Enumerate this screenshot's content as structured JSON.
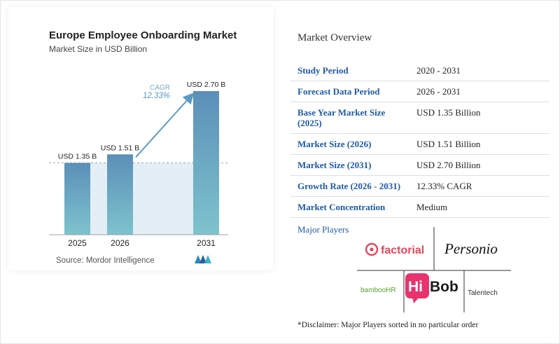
{
  "chart": {
    "source": "Source: Mordor Intelligence",
    "cagr_label": "CAGR",
    "cagr_value": "12.33%",
    "colors": {
      "bar_top": "#5b8fb8",
      "bar_bottom": "#7ec3cd",
      "band": "#e3eef6",
      "cagr": "#5a9bc4"
    }
  },
  "chart_data": {
    "type": "bar",
    "title": "Europe Employee Onboarding Market",
    "subtitle": "Market Size in USD Billion",
    "categories": [
      "2025",
      "2026",
      "2031"
    ],
    "values": [
      1.35,
      1.51,
      2.7
    ],
    "data_labels": [
      "USD 1.35 B",
      "USD 1.51 B",
      "USD 2.70 B"
    ],
    "ylim": [
      0,
      2.7
    ],
    "grid": false,
    "legend": "none"
  },
  "overview": {
    "title": "Market Overview",
    "rows": [
      {
        "key": "Study Period",
        "value": "2020 - 2031"
      },
      {
        "key": "Forecast Data Period",
        "value": "2026 - 2031"
      },
      {
        "key": "Base Year Market Size (2025)",
        "value": "USD 1.35 Billion"
      },
      {
        "key": "Market Size (2026)",
        "value": "USD 1.51 Billion"
      },
      {
        "key": "Market Size (2031)",
        "value": "USD 2.70 Billion"
      },
      {
        "key": "Growth Rate (2026 - 2031)",
        "value": "12.33% CAGR"
      },
      {
        "key": "Market Concentration",
        "value": "Medium"
      }
    ]
  },
  "players": {
    "title": "Major Players",
    "logos": [
      "factorial",
      "Personio",
      "bambooHR",
      "Hi",
      "Bob",
      "Talentech"
    ],
    "disclaimer": "*Disclaimer: Major Players sorted in no particular order"
  }
}
